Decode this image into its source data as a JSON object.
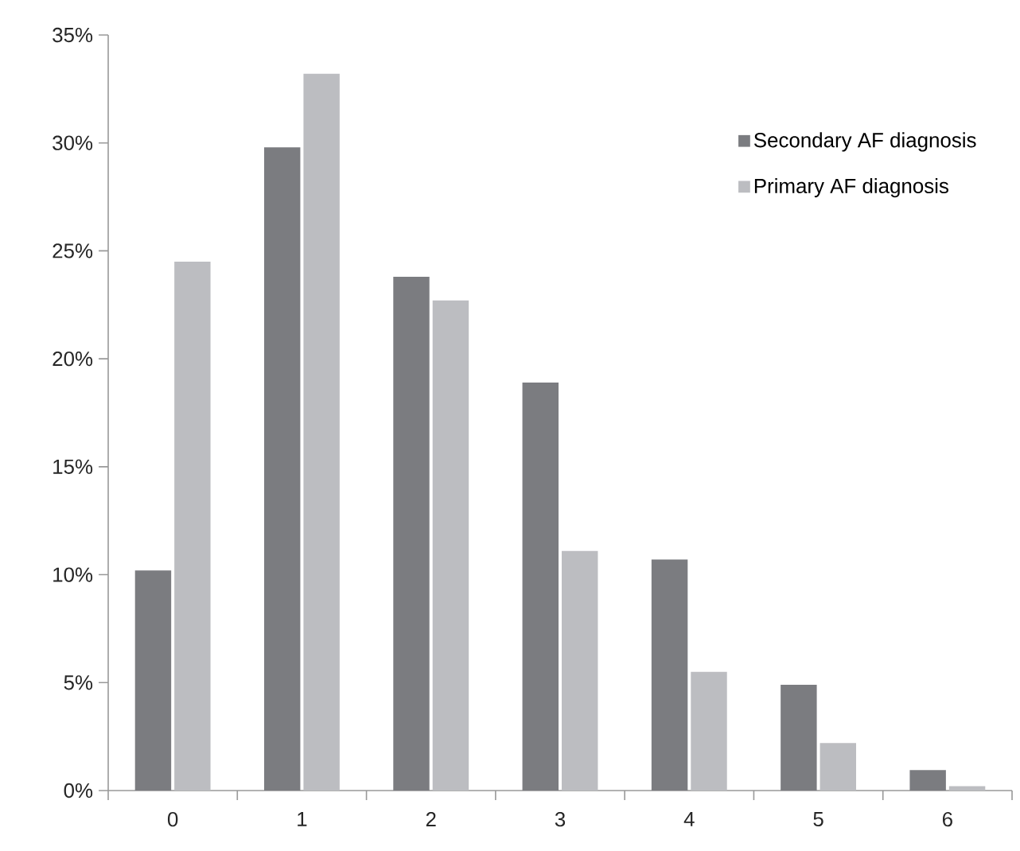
{
  "chart_data": {
    "type": "bar",
    "categories": [
      "0",
      "1",
      "2",
      "3",
      "4",
      "5",
      "6"
    ],
    "series": [
      {
        "name": "Secondary AF diagnosis",
        "color": "#7b7c80",
        "values": [
          10.2,
          29.8,
          23.8,
          18.9,
          10.7,
          4.9,
          0.95
        ]
      },
      {
        "name": "Primary AF diagnosis",
        "color": "#bcbdc1",
        "values": [
          24.5,
          33.2,
          22.7,
          11.1,
          5.5,
          2.2,
          0.2
        ]
      }
    ],
    "ylim": [
      0,
      35
    ],
    "yticks": [
      {
        "value": 0,
        "label": "0%"
      },
      {
        "value": 5,
        "label": "5%"
      },
      {
        "value": 10,
        "label": "10%"
      },
      {
        "value": 15,
        "label": "15%"
      },
      {
        "value": 20,
        "label": "20%"
      },
      {
        "value": 25,
        "label": "25%"
      },
      {
        "value": 30,
        "label": "30%"
      },
      {
        "value": 35,
        "label": "35%"
      }
    ],
    "grid": false,
    "legend": "top right"
  }
}
